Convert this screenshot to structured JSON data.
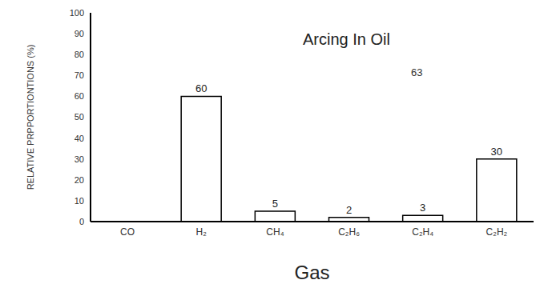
{
  "chart_data": {
    "type": "bar",
    "title": "Arcing In Oil",
    "x_label": "Gas",
    "y_label": "RELATIVE PRPPORTIONTIONS (%)",
    "categories": [
      "CO",
      "H₂",
      "CH₄",
      "C₂H₆",
      "C₂H₄",
      "C₂H₂"
    ],
    "values": [
      null,
      60,
      5,
      2,
      3,
      30
    ],
    "color": "#ffffff",
    "ylim": [
      0,
      100
    ],
    "yticks": [
      0,
      10,
      20,
      30,
      40,
      50,
      60,
      70,
      80,
      90,
      100
    ],
    "grid": false,
    "data_labels": true,
    "annotations": [
      "63"
    ]
  }
}
